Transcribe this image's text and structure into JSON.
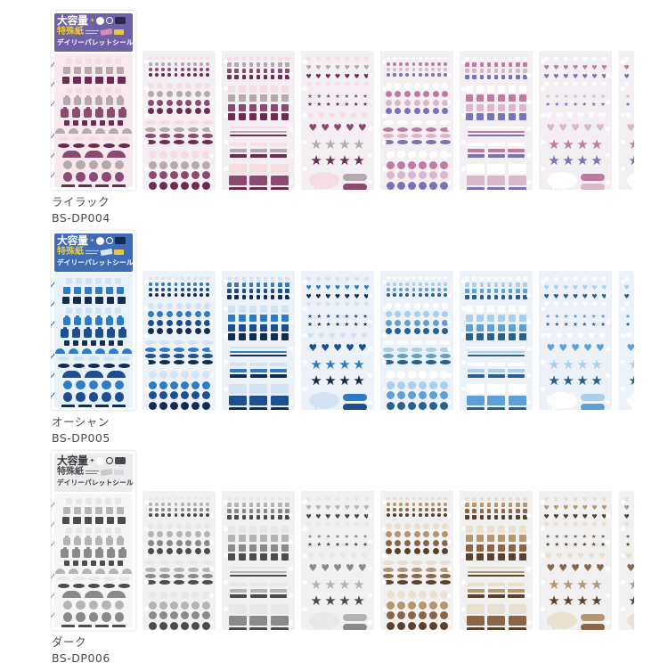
{
  "shared": {
    "capacity_label": "大容量",
    "paper_label": "特殊紙",
    "product_name": "デイリーパレットシール",
    "sheet_types": [
      "dots",
      "squares",
      "hearts",
      "dots",
      "squares",
      "hearts",
      "hearts-partial"
    ],
    "icons": [
      "sparkle-icon",
      "circle-badge-icon",
      "ring-badge-icon",
      "count-badge-icon",
      "tape-badge-icon",
      "pattern-badge-icon",
      "binder-squiggle-icon"
    ]
  },
  "products": [
    {
      "name": "ライラック",
      "code": "BS-DP004",
      "colors": {
        "accent": "#6e61a5",
        "header_text": "#ffffff",
        "sub_text": "#edc83f",
        "badge_dark": "#2d2a52",
        "badge_yellow": "#e4c84a",
        "tape": "#d98aae",
        "squiggle": "#8678c0",
        "package_bg": "#f8e9ee",
        "sheet_bg": "#f3eff2",
        "palette_a": [
          "#f6dde4",
          "#b5a9ae",
          "#8c4a72",
          "#6d2b52"
        ],
        "palette_b": [
          "#ffffff",
          "#c07aa2",
          "#dcb7cc",
          "#7673b6"
        ]
      }
    },
    {
      "name": "オーシャン",
      "code": "BS-DP005",
      "colors": {
        "accent": "#3f6cb4",
        "header_text": "#ffffff",
        "sub_text": "#edc83f",
        "badge_dark": "#142c52",
        "badge_yellow": "#e4c84a",
        "tape": "#d7e2f0",
        "squiggle": "#3f6cb4",
        "package_bg": "#e9f1f9",
        "sheet_bg": "#edf2f8",
        "palette_a": [
          "#d4e3f3",
          "#2e7cc5",
          "#1d4e91",
          "#132d51"
        ],
        "palette_b": [
          "#ffffff",
          "#a9cfec",
          "#5e9fd8",
          "#2a5f8e"
        ]
      }
    },
    {
      "name": "ダーク",
      "code": "BS-DP006",
      "colors": {
        "accent": "#ececee",
        "header_text": "#3a3a3c",
        "sub_text": "#4a4a4c",
        "badge_dark": "#4a4a4c",
        "badge_yellow": "#d8d8da",
        "tape": "#c9c9cc",
        "squiggle": "#9a9aa0",
        "package_bg": "#f6f6f7",
        "sheet_bg": "#f1f1f2",
        "palette_a": [
          "#e8e8ea",
          "#b4b4b6",
          "#8a8a8c",
          "#4c4c4e"
        ],
        "palette_b": [
          "#e9e1cf",
          "#b3976f",
          "#8a6647",
          "#59422e"
        ]
      }
    }
  ]
}
